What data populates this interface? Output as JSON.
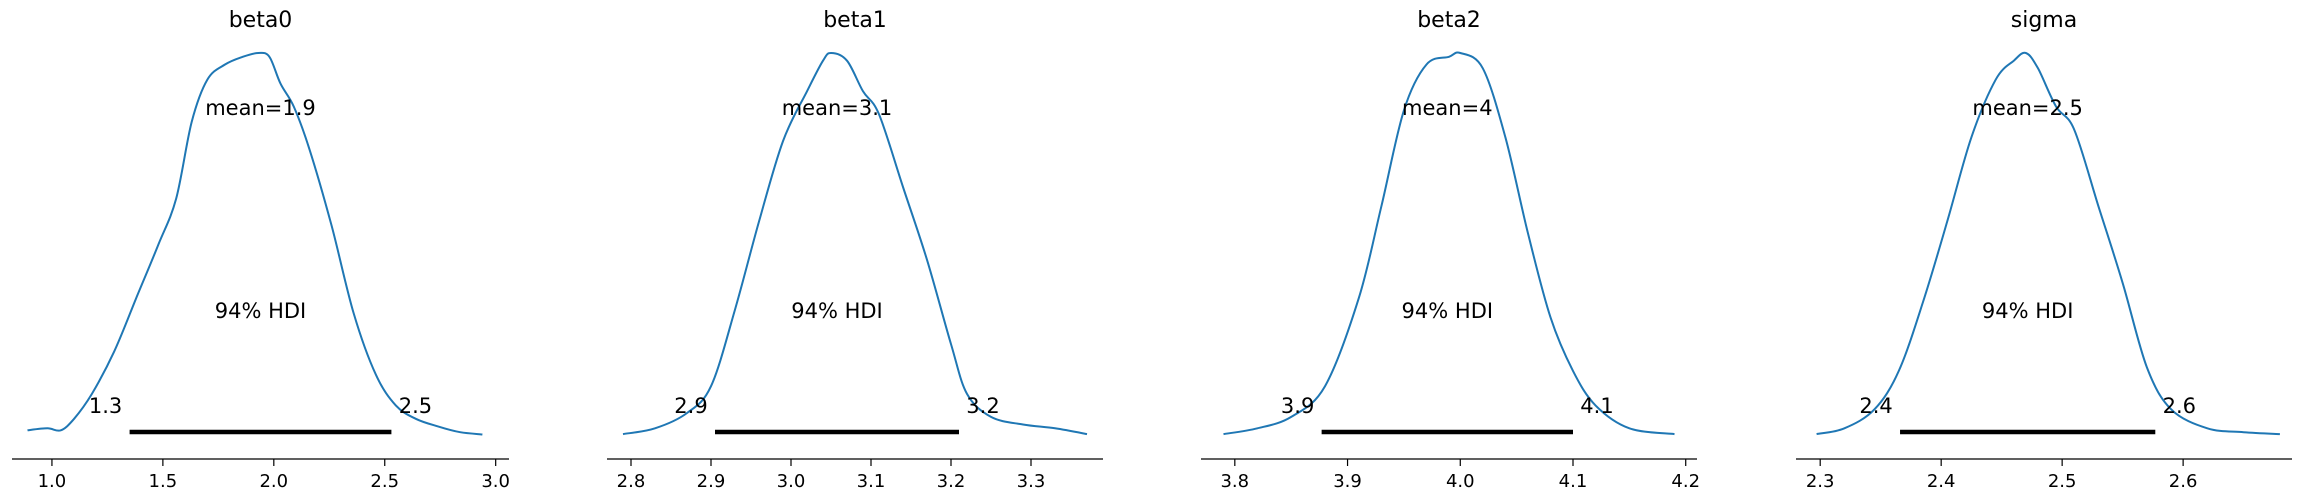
{
  "chart_data": [
    {
      "type": "area",
      "title": "beta0",
      "mean_label": "mean=1.9",
      "hdi_label": "94% HDI",
      "hdi_low_label": "1.3",
      "hdi_high_label": "2.5",
      "hdi": [
        1.35,
        2.53
      ],
      "xlim": [
        0.82,
        3.06
      ],
      "ylim": [
        0,
        1.0
      ],
      "xticks": [
        1.0,
        1.5,
        2.0,
        2.5,
        3.0
      ],
      "xtick_labels": [
        "1.0",
        "1.5",
        "2.0",
        "2.5",
        "3.0"
      ],
      "x": [
        0.89,
        0.98,
        1.04,
        1.1,
        1.18,
        1.28,
        1.38,
        1.48,
        1.56,
        1.63,
        1.7,
        1.78,
        1.86,
        1.93,
        1.98,
        2.03,
        2.09,
        2.16,
        2.26,
        2.36,
        2.46,
        2.55,
        2.64,
        2.74,
        2.84,
        2.94
      ],
      "y": [
        0.015,
        0.02,
        0.015,
        0.045,
        0.11,
        0.22,
        0.36,
        0.5,
        0.62,
        0.82,
        0.93,
        0.97,
        0.99,
        1.0,
        0.99,
        0.92,
        0.86,
        0.75,
        0.55,
        0.32,
        0.16,
        0.08,
        0.045,
        0.025,
        0.01,
        0.004
      ]
    },
    {
      "type": "area",
      "title": "beta1",
      "mean_label": "mean=3.1",
      "hdi_label": "94% HDI",
      "hdi_low_label": "2.9",
      "hdi_high_label": "3.2",
      "hdi": [
        2.905,
        3.21
      ],
      "xlim": [
        2.77,
        3.39
      ],
      "ylim": [
        0,
        1.0
      ],
      "xticks": [
        2.8,
        2.9,
        3.0,
        3.1,
        3.2,
        3.3
      ],
      "xtick_labels": [
        "2.8",
        "2.9",
        "3.0",
        "3.1",
        "3.2",
        "3.3"
      ],
      "x": [
        2.79,
        2.83,
        2.87,
        2.9,
        2.93,
        2.96,
        2.99,
        3.02,
        3.04,
        3.05,
        3.07,
        3.09,
        3.11,
        3.14,
        3.17,
        3.2,
        3.22,
        3.25,
        3.29,
        3.33,
        3.37
      ],
      "y": [
        0.005,
        0.02,
        0.06,
        0.13,
        0.33,
        0.56,
        0.77,
        0.9,
        0.98,
        1.0,
        0.98,
        0.9,
        0.84,
        0.65,
        0.46,
        0.24,
        0.11,
        0.05,
        0.03,
        0.02,
        0.005
      ]
    },
    {
      "type": "area",
      "title": "beta2",
      "mean_label": "mean=4",
      "hdi_label": "94% HDI",
      "hdi_low_label": "3.9",
      "hdi_high_label": "4.1",
      "hdi": [
        3.877,
        4.1
      ],
      "xlim": [
        3.77,
        4.21
      ],
      "ylim": [
        0,
        1.0
      ],
      "xticks": [
        3.8,
        3.9,
        4.0,
        4.1,
        4.2
      ],
      "xtick_labels": [
        "3.8",
        "3.9",
        "4.0",
        "4.1",
        "4.2"
      ],
      "x": [
        3.79,
        3.82,
        3.85,
        3.88,
        3.91,
        3.93,
        3.95,
        3.97,
        3.99,
        4.0,
        4.02,
        4.04,
        4.06,
        4.08,
        4.1,
        4.12,
        4.15,
        4.19
      ],
      "y": [
        0.005,
        0.02,
        0.05,
        0.13,
        0.36,
        0.6,
        0.85,
        0.97,
        0.99,
        1.0,
        0.96,
        0.78,
        0.53,
        0.31,
        0.17,
        0.08,
        0.02,
        0.005
      ]
    },
    {
      "type": "area",
      "title": "sigma",
      "mean_label": "mean=2.5",
      "hdi_label": "94% HDI",
      "hdi_low_label": "2.4",
      "hdi_high_label": "2.6",
      "hdi": [
        2.366,
        2.577
      ],
      "xlim": [
        2.28,
        2.69
      ],
      "ylim": [
        0,
        1.0
      ],
      "xticks": [
        2.3,
        2.4,
        2.5,
        2.6
      ],
      "xtick_labels": [
        "2.3",
        "2.4",
        "2.5",
        "2.6"
      ],
      "x": [
        2.297,
        2.32,
        2.345,
        2.365,
        2.385,
        2.405,
        2.425,
        2.445,
        2.46,
        2.47,
        2.48,
        2.495,
        2.51,
        2.53,
        2.55,
        2.57,
        2.59,
        2.62,
        2.65,
        2.68
      ],
      "y": [
        0.005,
        0.02,
        0.07,
        0.17,
        0.35,
        0.56,
        0.78,
        0.93,
        0.98,
        1.0,
        0.96,
        0.86,
        0.8,
        0.6,
        0.4,
        0.18,
        0.07,
        0.02,
        0.01,
        0.005
      ]
    }
  ],
  "colors": {
    "curve": "#1f77b4",
    "hdi_bar": "#000000",
    "axis": "#000000",
    "background": "#ffffff"
  }
}
